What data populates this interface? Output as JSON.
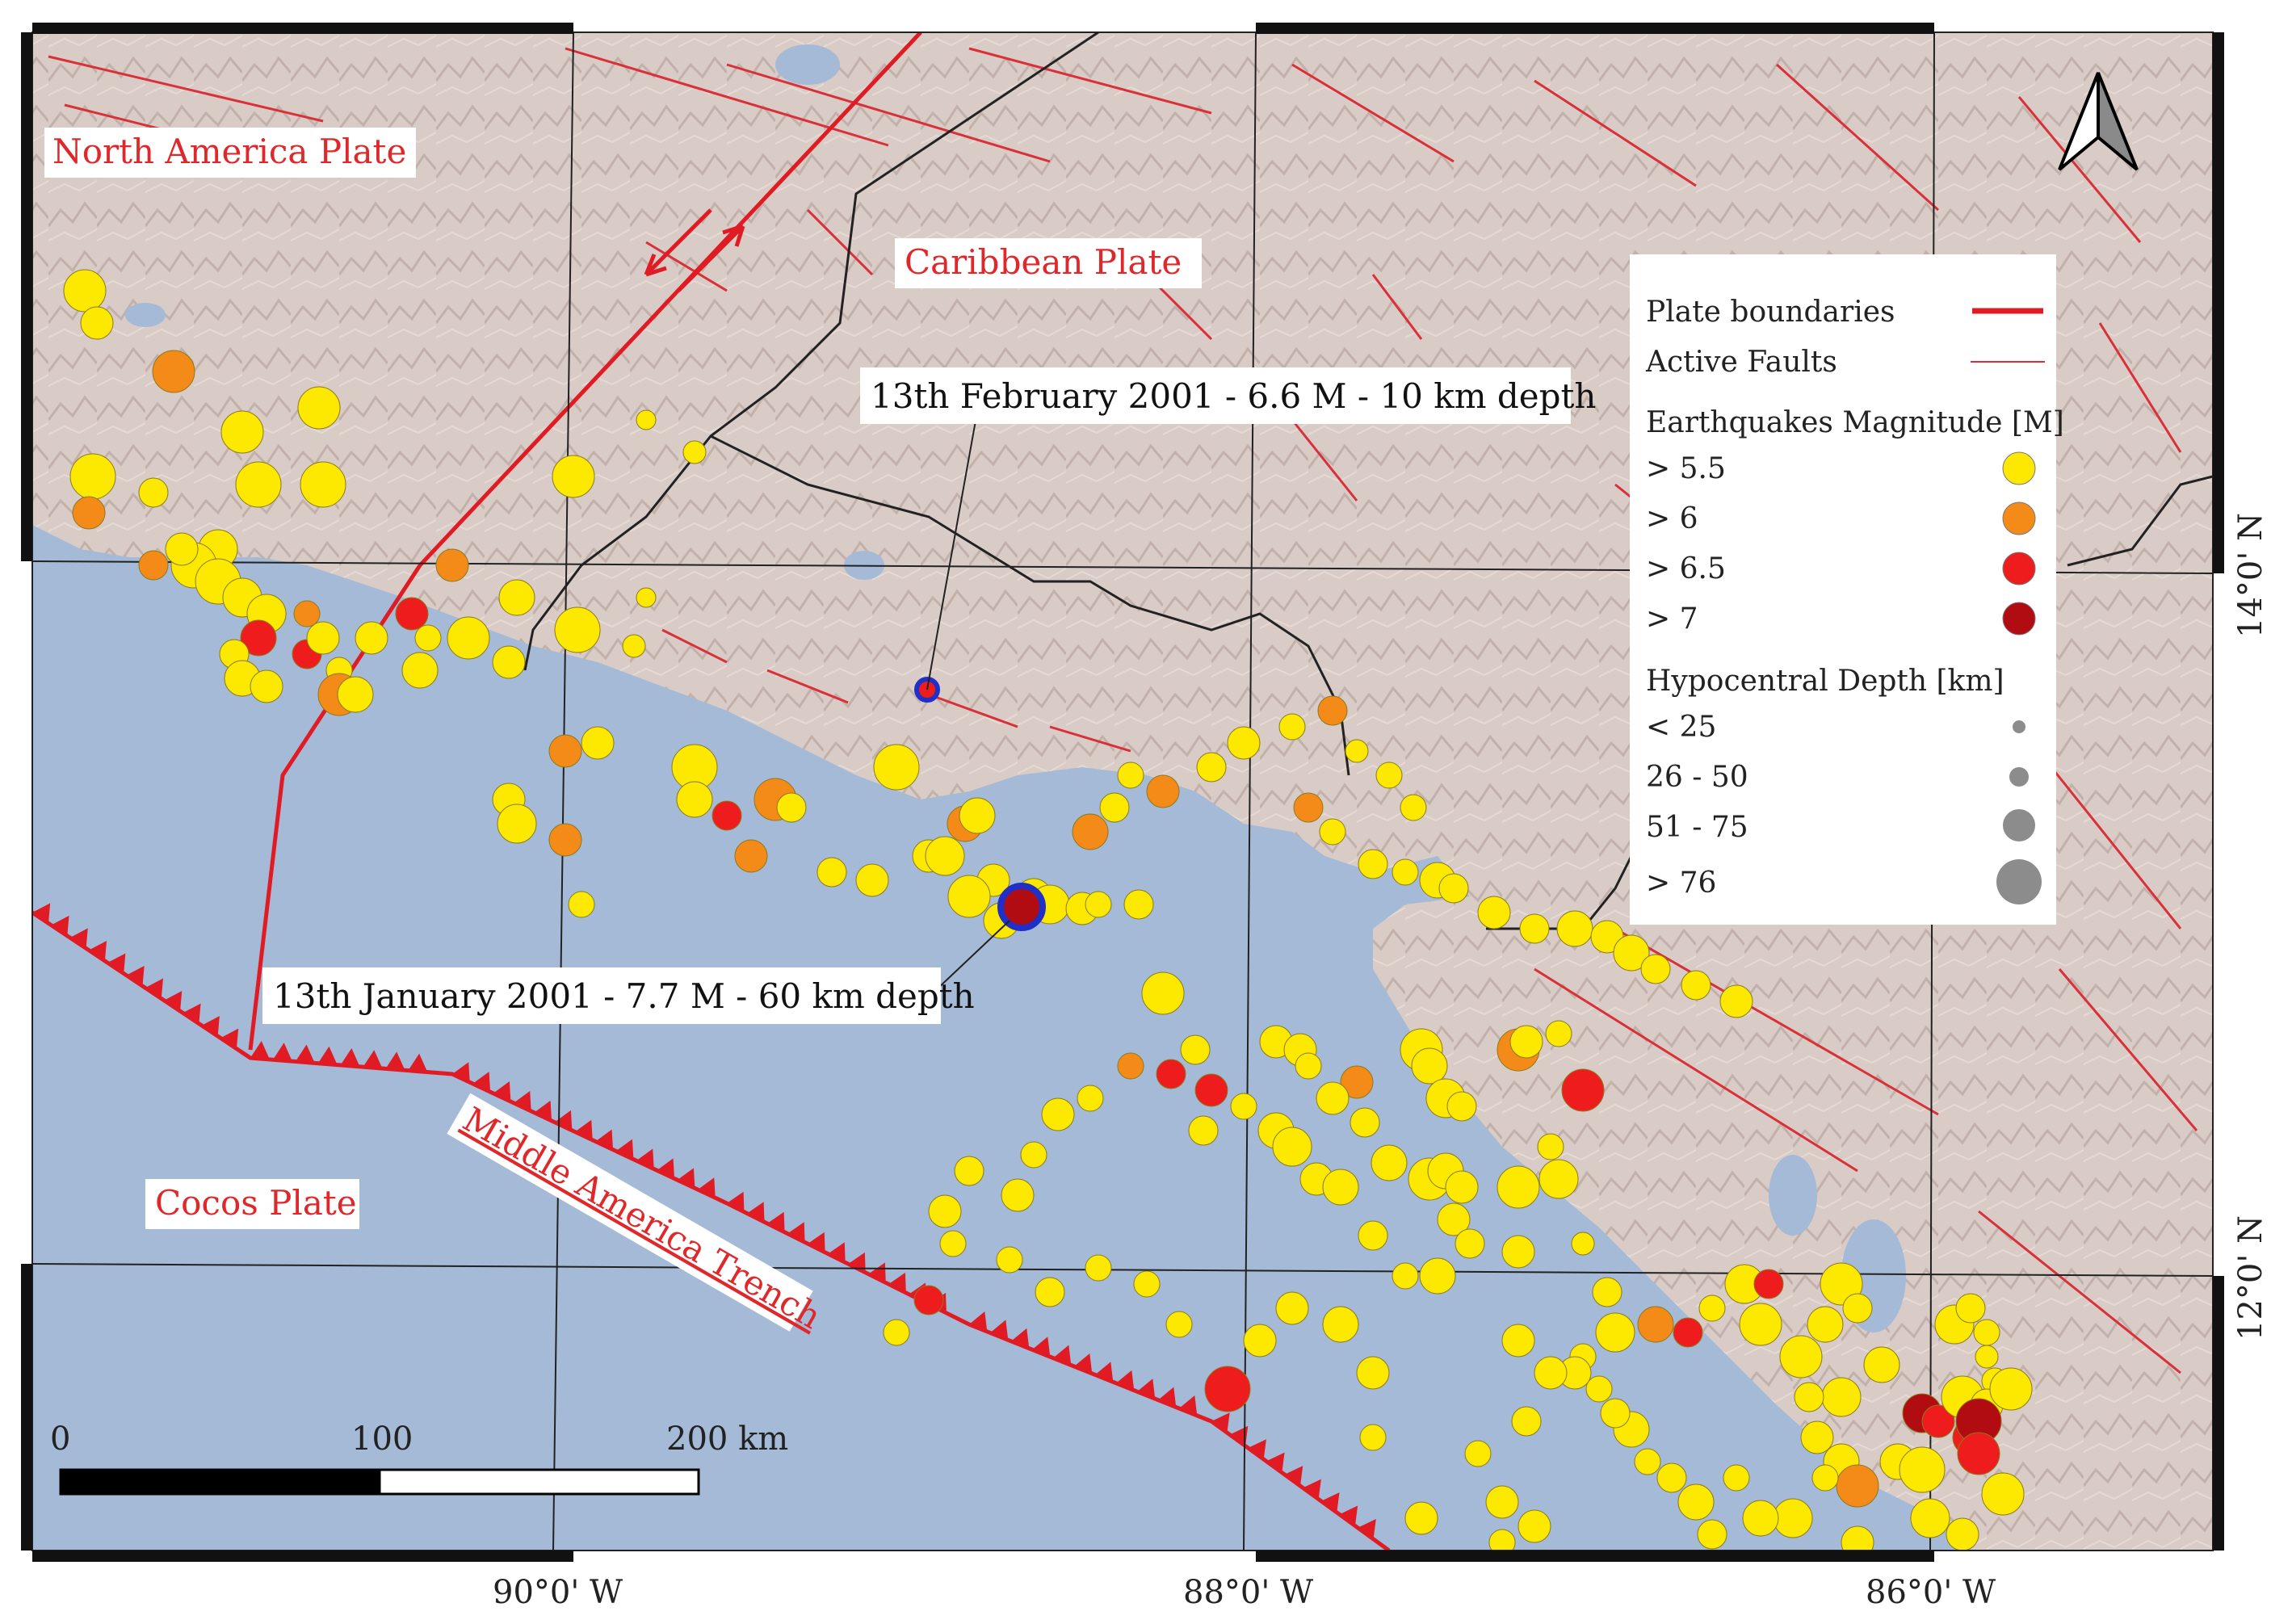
{
  "map": {
    "plate_labels": {
      "north_america": "North America Plate",
      "caribbean": "Caribbean Plate",
      "cocos": "Cocos Plate"
    },
    "trench_label": "Middle America Trench",
    "annotations": {
      "feb_2001": "13th February 2001 - 6.6 M - 10 km depth",
      "jan_2001": "13th January 2001 - 7.7 M - 60 km depth"
    },
    "axes": {
      "bottom": [
        "90°0' W",
        "88°0' W",
        "86°0' W"
      ],
      "right": [
        "14°0' N",
        "12°0' N"
      ]
    },
    "scale_bar": {
      "labels": [
        "0",
        "100",
        "200 km"
      ]
    },
    "north_arrow": "north-arrow-icon"
  },
  "legend": {
    "plate_boundaries": "Plate boundaries",
    "active_faults": "Active Faults",
    "magnitude_title": "Earthquakes Magnitude [M]",
    "magnitudes": [
      {
        "label": "> 5.5",
        "color": "#fde800"
      },
      {
        "label": "> 6",
        "color": "#f48a17"
      },
      {
        "label": "> 6.5",
        "color": "#ee1c1c"
      },
      {
        "label": "> 7",
        "color": "#b00c12"
      }
    ],
    "depth_title": "Hypocentral Depth [km]",
    "depths": [
      "< 25",
      "26 - 50",
      "51 - 75",
      "> 76"
    ]
  },
  "colors": {
    "sea": "#a4bad6",
    "land": "#d8c9c3",
    "plate_boundary": "#e01b24",
    "fault": "#d9303a",
    "border": "#222222",
    "highlight_ring": "#1f2fc7"
  }
}
